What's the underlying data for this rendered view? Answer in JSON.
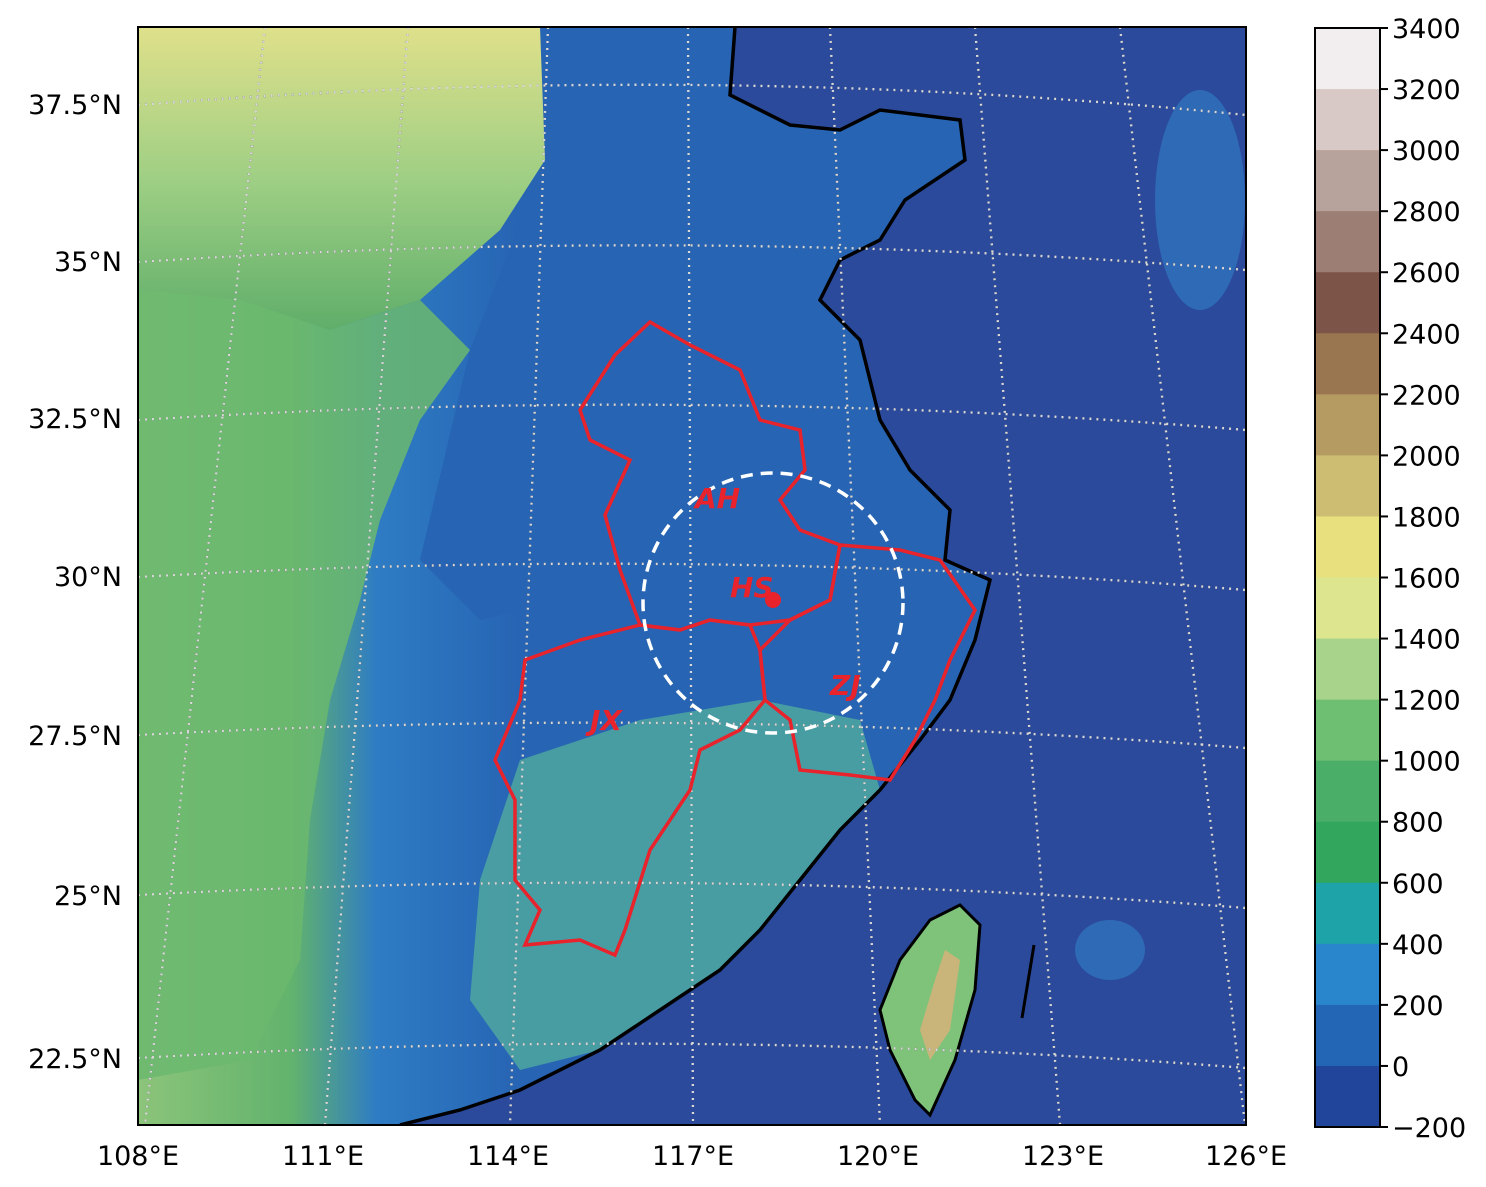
{
  "map": {
    "lat_labels": [
      "37.5°N",
      "35°N",
      "32.5°N",
      "30°N",
      "27.5°N",
      "25°N",
      "22.5°N"
    ],
    "lon_labels": [
      "108°E",
      "111°E",
      "114°E",
      "117°E",
      "120°E",
      "123°E",
      "126°E"
    ],
    "regions": [
      {
        "id": "ah",
        "label": "AH"
      },
      {
        "id": "hs",
        "label": "HS"
      },
      {
        "id": "zj",
        "label": "ZJ"
      },
      {
        "id": "jx",
        "label": "JX"
      }
    ],
    "colors": {
      "sea": "#2b4a9c",
      "lowland": "#2660b0",
      "border": "#e8232b",
      "circle": "#ffffff",
      "coast": "#000000"
    }
  },
  "colorbar": {
    "ticks": [
      "3400",
      "3200",
      "3000",
      "2800",
      "2600",
      "2400",
      "2200",
      "2000",
      "1800",
      "1600",
      "1400",
      "1200",
      "1000",
      "800",
      "600",
      "400",
      "200",
      "0",
      "−200"
    ],
    "colors": [
      "#f2eeef",
      "#d8c9c6",
      "#b8a29c",
      "#9c7e74",
      "#7d5548",
      "#9a7650",
      "#b59b62",
      "#ccbd72",
      "#e8df7e",
      "#dde58f",
      "#a7d48a",
      "#6fbf72",
      "#4aae68",
      "#31a65c",
      "#1ea3a8",
      "#2a86cc",
      "#2366b6",
      "#22459c"
    ]
  }
}
